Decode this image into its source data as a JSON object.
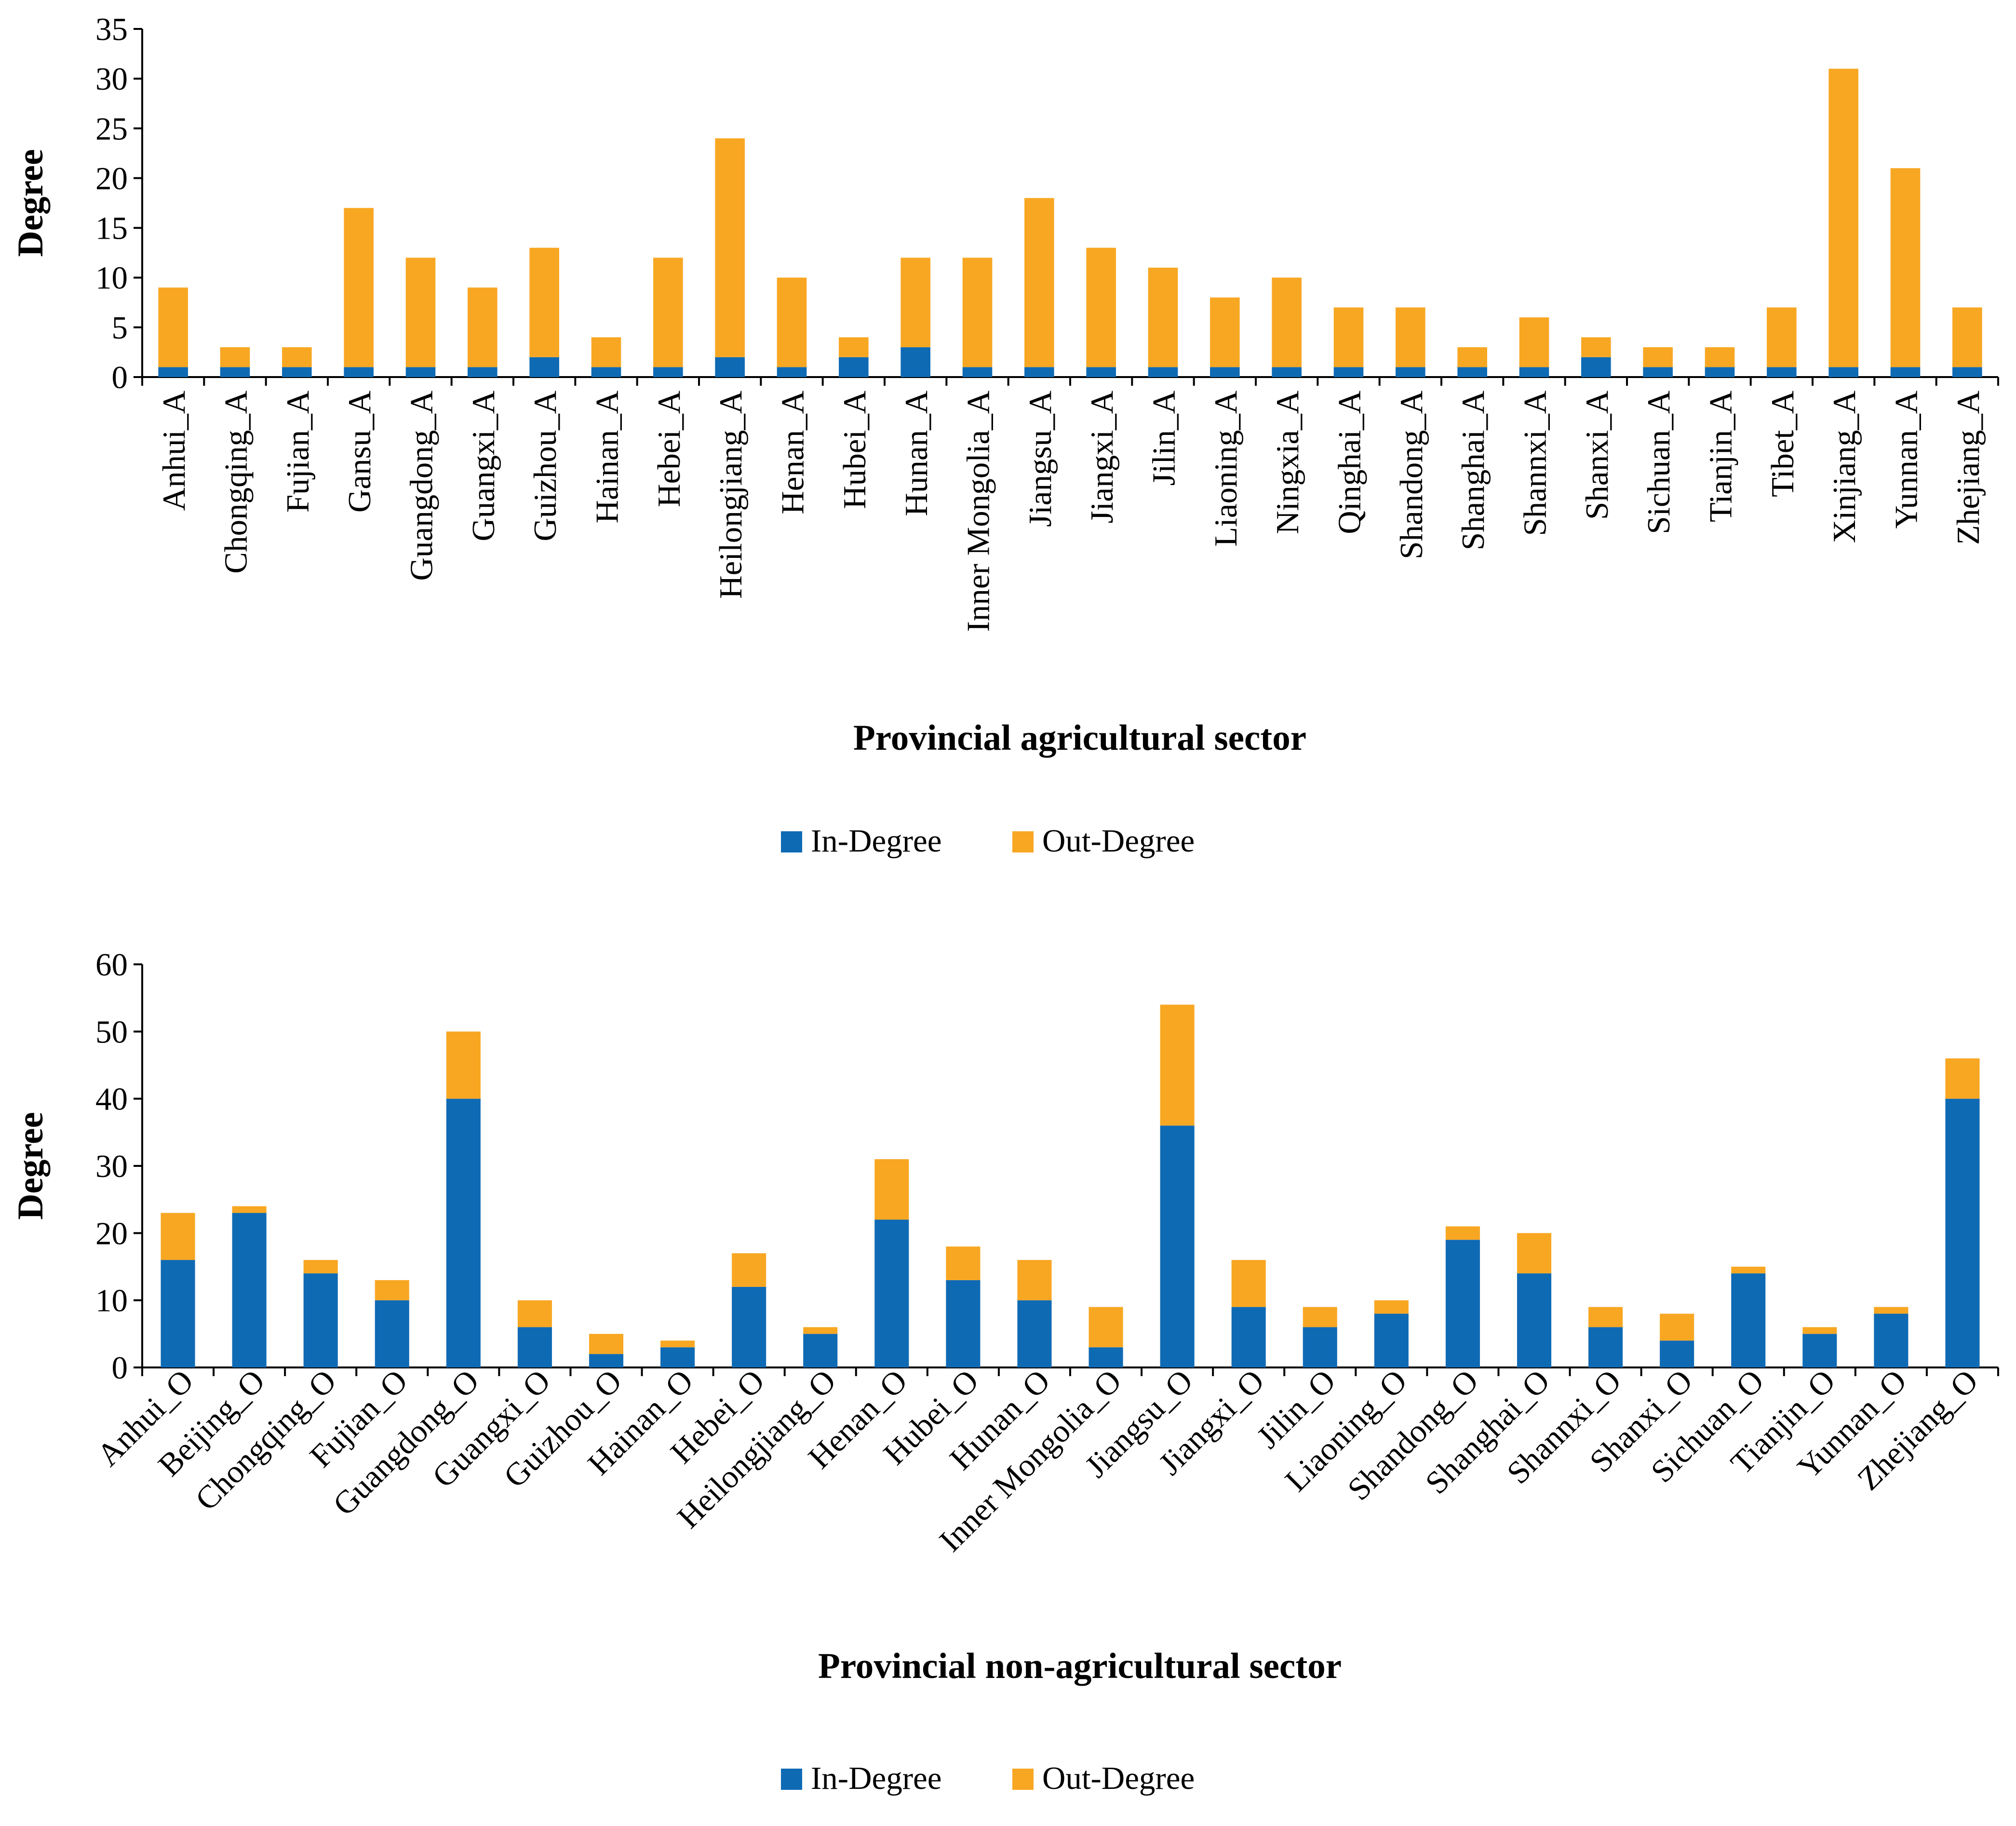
{
  "chart_data": [
    {
      "type": "bar",
      "stacked": true,
      "xlabel": "Provincial agricultural sector",
      "ylabel": "Degree",
      "ylim": [
        0,
        35
      ],
      "yticks": [
        0,
        5,
        10,
        15,
        20,
        25,
        30,
        35
      ],
      "grid": false,
      "legend_position": "bottom",
      "categories": [
        "Anhui_A",
        "Chongqing_A",
        "Fujian_A",
        "Gansu_A",
        "Guangdong_A",
        "Guangxi_A",
        "Guizhou_A",
        "Hainan_A",
        "Hebei_A",
        "Heilongjiang_A",
        "Henan_A",
        "Hubei_A",
        "Hunan_A",
        "Inner Mongolia_A",
        "Jiangsu_A",
        "Jiangxi_A",
        "Jilin_A",
        "Liaoning_A",
        "Ningxia_A",
        "Qinghai_A",
        "Shandong_A",
        "Shanghai_A",
        "Shannxi_A",
        "Shanxi_A",
        "Sichuan_A",
        "Tianjin_A",
        "Tibet_A",
        "Xinjiang_A",
        "Yunnan_A",
        "Zhejiang_A"
      ],
      "series": [
        {
          "name": "In-Degree",
          "color": "#0f6ab4",
          "values": [
            1,
            1,
            1,
            1,
            1,
            1,
            2,
            1,
            1,
            2,
            1,
            2,
            3,
            1,
            1,
            1,
            1,
            1,
            1,
            1,
            1,
            1,
            1,
            2,
            1,
            1,
            1,
            1,
            1,
            1
          ]
        },
        {
          "name": "Out-Degree",
          "color": "#f8a723",
          "values": [
            8,
            2,
            2,
            16,
            11,
            8,
            11,
            3,
            11,
            22,
            9,
            2,
            9,
            11,
            17,
            12,
            10,
            7,
            9,
            6,
            6,
            2,
            5,
            2,
            2,
            2,
            6,
            30,
            20,
            6
          ]
        }
      ]
    },
    {
      "type": "bar",
      "stacked": true,
      "xlabel": "Provincial non-agricultural sector",
      "ylabel": "Degree",
      "ylim": [
        0,
        60
      ],
      "yticks": [
        0,
        10,
        20,
        30,
        40,
        50,
        60
      ],
      "grid": false,
      "legend_position": "bottom",
      "categories": [
        "Anhui_O",
        "Beijing_O",
        "Chongqing_O",
        "Fujian_O",
        "Guangdong_O",
        "Guangxi_O",
        "Guizhou_O",
        "Hainan_O",
        "Hebei_O",
        "Heilongjiang_O",
        "Henan_O",
        "Hubei_O",
        "Hunan_O",
        "Inner Mongolia_O",
        "Jiangsu_O",
        "Jiangxi_O",
        "Jilin_O",
        "Liaoning_O",
        "Shandong_O",
        "Shanghai_O",
        "Shannxi_O",
        "Shanxi_O",
        "Sichuan_O",
        "Tianjin_O",
        "Yunnan_O",
        "Zhejiang_O"
      ],
      "series": [
        {
          "name": "In-Degree",
          "color": "#0f6ab4",
          "values": [
            16,
            23,
            14,
            10,
            40,
            6,
            2,
            3,
            12,
            5,
            22,
            13,
            10,
            3,
            36,
            9,
            6,
            8,
            19,
            14,
            6,
            4,
            14,
            5,
            8,
            40
          ]
        },
        {
          "name": "Out-Degree",
          "color": "#f8a723",
          "values": [
            7,
            1,
            2,
            3,
            10,
            4,
            3,
            1,
            5,
            1,
            9,
            5,
            6,
            6,
            18,
            7,
            3,
            2,
            2,
            6,
            3,
            4,
            1,
            1,
            1,
            6
          ]
        }
      ]
    }
  ]
}
